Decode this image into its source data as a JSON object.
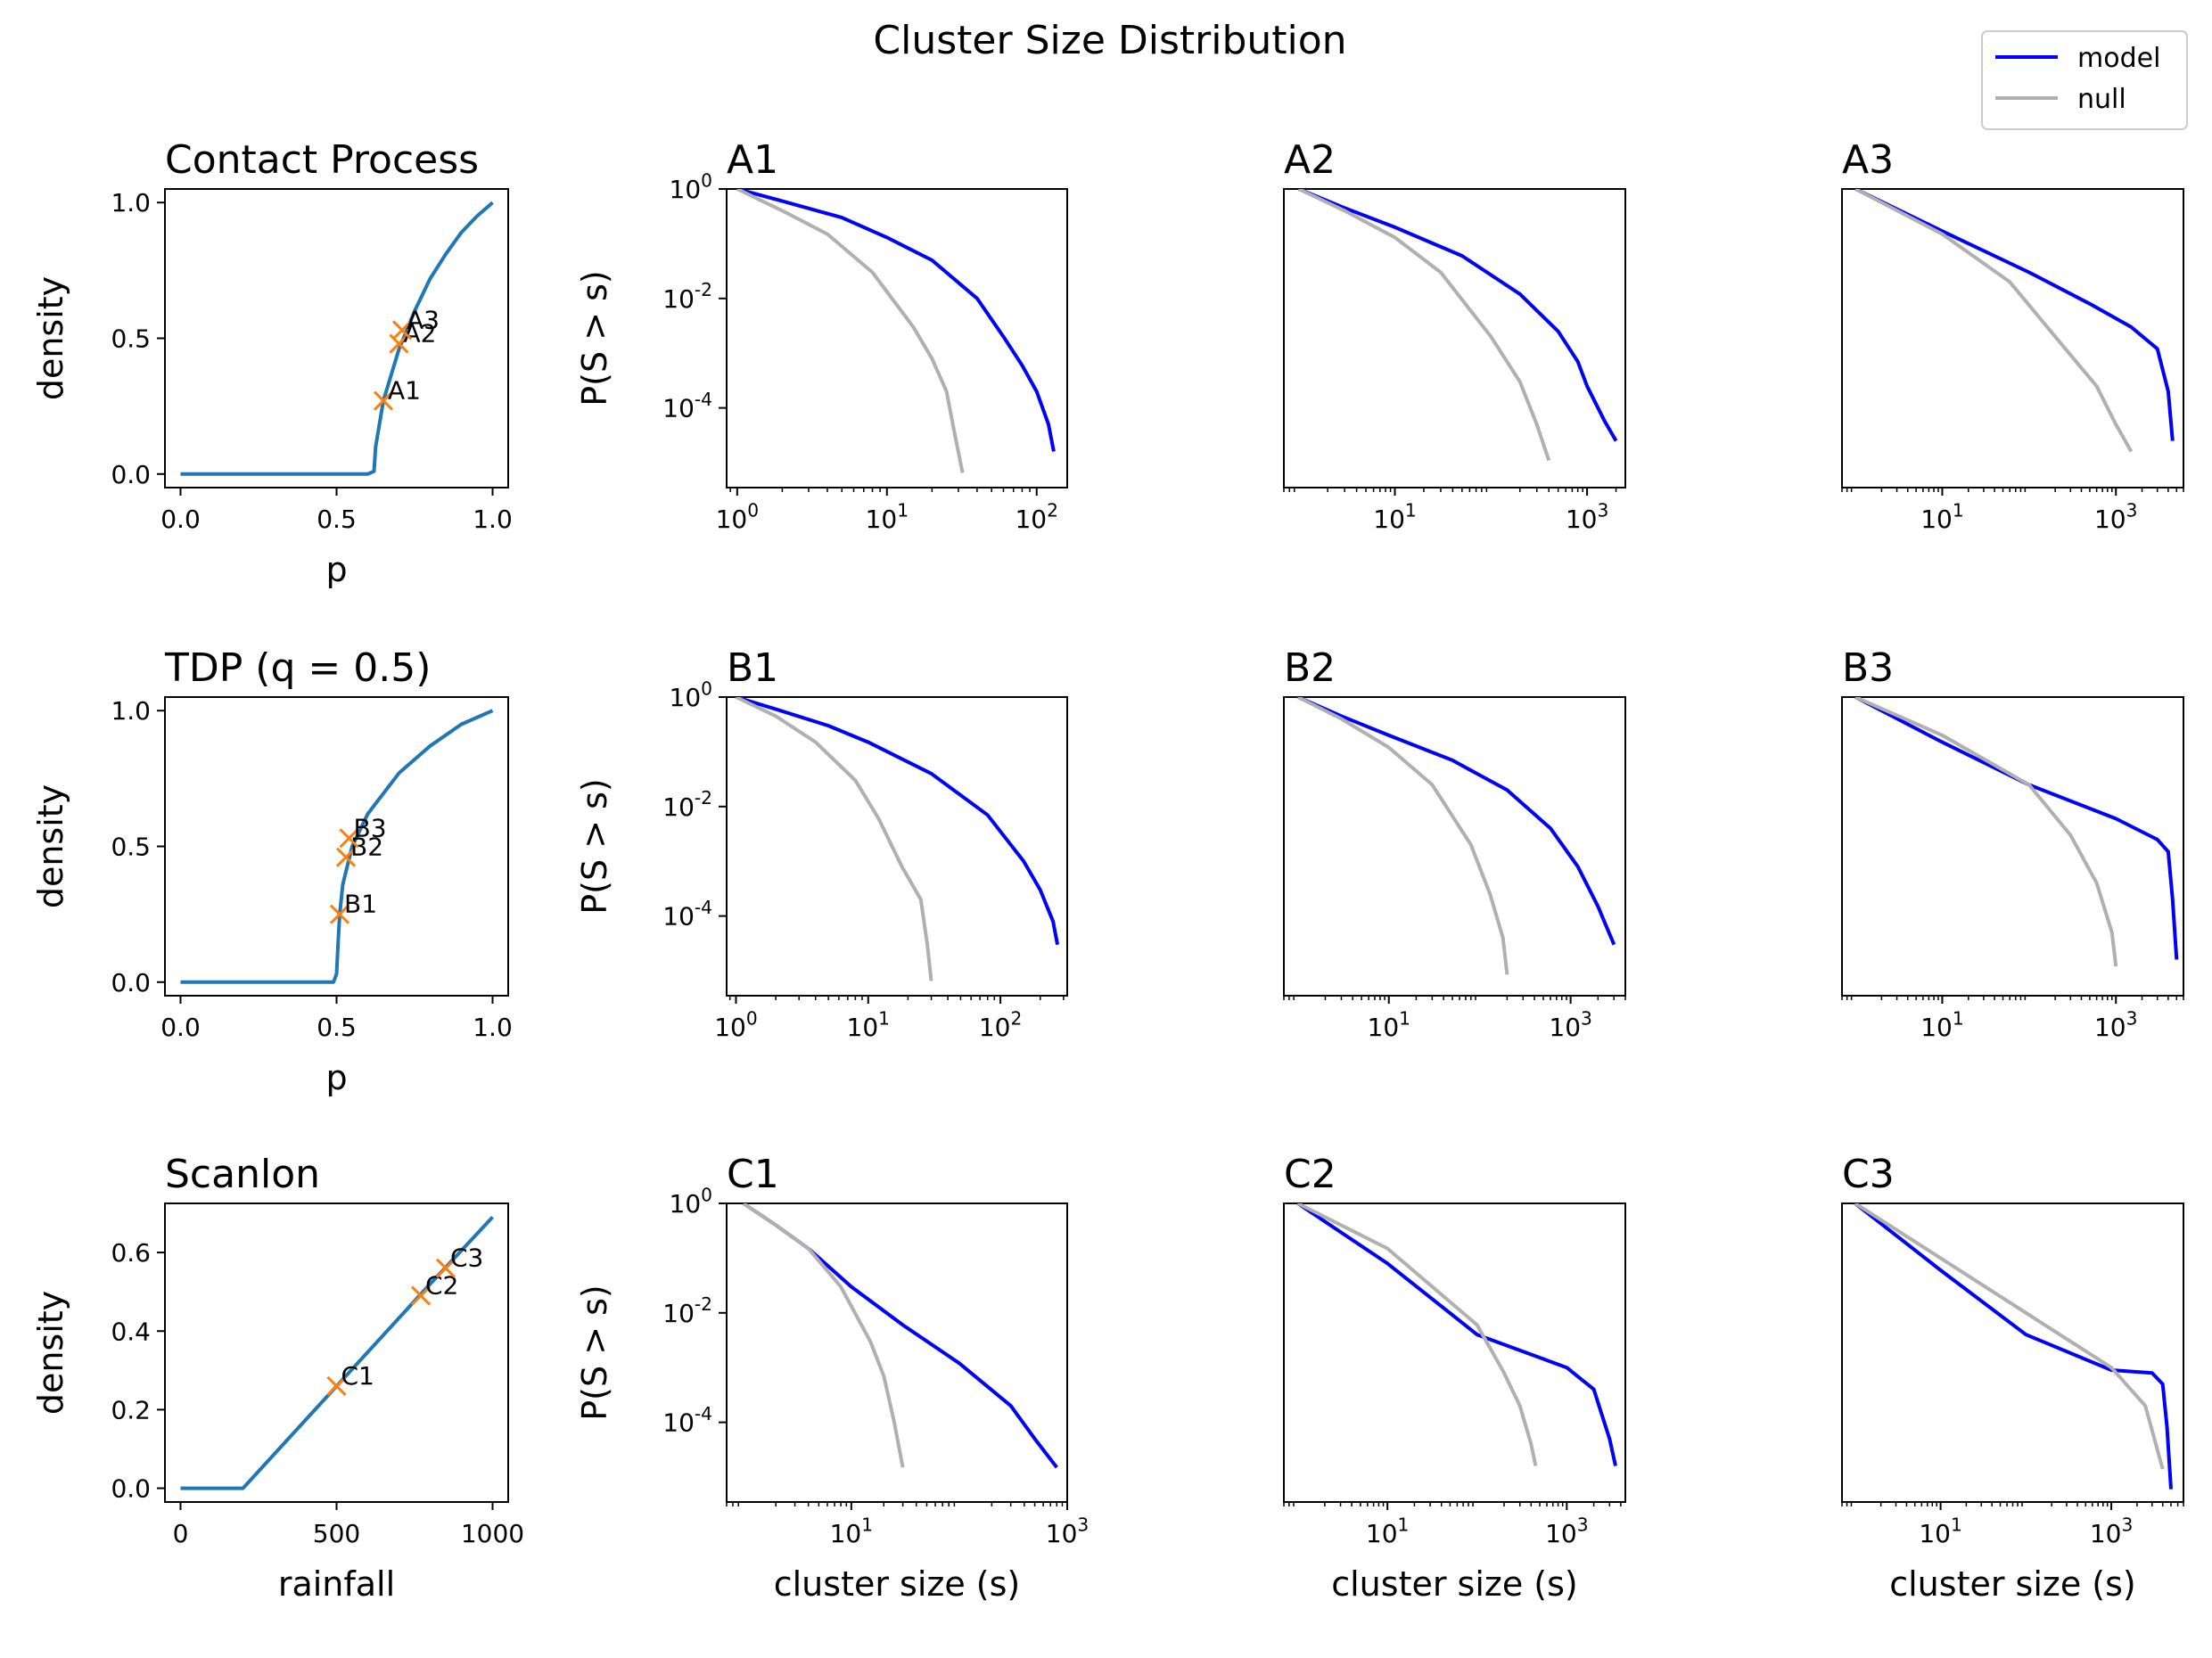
{
  "figure": {
    "title": "Cluster Size Distribution",
    "legend": {
      "placement": "upper-right",
      "entries": [
        {
          "label": "model",
          "color": "#0000ff"
        },
        {
          "label": "null",
          "color": "#b0b0b0"
        }
      ]
    }
  },
  "colors": {
    "phase_curve": "#1f77b4",
    "marker": "#ff7f0e",
    "model": "#0000ff",
    "null": "#b0b0b0"
  },
  "chart_data": [
    {
      "type": "line",
      "title": "Contact Process",
      "xlabel": "p",
      "ylabel": "density",
      "xlim": [
        -0.05,
        1.05
      ],
      "ylim": [
        -0.05,
        1.05
      ],
      "xticks": [
        0.0,
        0.5,
        1.0
      ],
      "xticklabels": [
        "0.0",
        "0.5",
        "1.0"
      ],
      "yticks": [
        0.0,
        0.5,
        1.0
      ],
      "yticklabels": [
        "0.0",
        "0.5",
        "1.0"
      ],
      "series": [
        {
          "x": [
            0,
            0.2,
            0.4,
            0.6,
            0.62,
            0.625,
            0.65,
            0.7,
            0.75,
            0.8,
            0.85,
            0.9,
            0.95,
            1.0
          ],
          "values": [
            0,
            0,
            0,
            0,
            0.01,
            0.1,
            0.27,
            0.46,
            0.6,
            0.72,
            0.81,
            0.89,
            0.95,
            1.0
          ]
        }
      ],
      "points": [
        {
          "label": "A1",
          "x": 0.65,
          "y": 0.27
        },
        {
          "label": "A2",
          "x": 0.7,
          "y": 0.48
        },
        {
          "label": "A3",
          "x": 0.71,
          "y": 0.53
        }
      ]
    },
    {
      "type": "line",
      "title": "TDP (q = 0.5)",
      "xlabel": "p",
      "ylabel": "density",
      "xlim": [
        -0.05,
        1.05
      ],
      "ylim": [
        -0.05,
        1.05
      ],
      "xticks": [
        0.0,
        0.5,
        1.0
      ],
      "xticklabels": [
        "0.0",
        "0.5",
        "1.0"
      ],
      "yticks": [
        0.0,
        0.5,
        1.0
      ],
      "yticklabels": [
        "0.0",
        "0.5",
        "1.0"
      ],
      "series": [
        {
          "x": [
            0,
            0.2,
            0.4,
            0.49,
            0.5,
            0.505,
            0.51,
            0.52,
            0.55,
            0.6,
            0.7,
            0.8,
            0.9,
            1.0
          ],
          "values": [
            0,
            0,
            0,
            0,
            0.03,
            0.15,
            0.25,
            0.36,
            0.5,
            0.62,
            0.77,
            0.87,
            0.95,
            1.0
          ]
        }
      ],
      "points": [
        {
          "label": "B1",
          "x": 0.51,
          "y": 0.25
        },
        {
          "label": "B2",
          "x": 0.53,
          "y": 0.46
        },
        {
          "label": "B3",
          "x": 0.54,
          "y": 0.53
        }
      ]
    },
    {
      "type": "line",
      "title": "Scanlon",
      "xlabel": "rainfall",
      "ylabel": "density",
      "xlim": [
        -50,
        1050
      ],
      "ylim": [
        -0.035,
        0.725
      ],
      "xticks": [
        0,
        500,
        1000
      ],
      "xticklabels": [
        "0",
        "500",
        "1000"
      ],
      "yticks": [
        0.0,
        0.2,
        0.4,
        0.6
      ],
      "yticklabels": [
        "0.0",
        "0.2",
        "0.4",
        "0.6"
      ],
      "series": [
        {
          "x": [
            0,
            200,
            500,
            800,
            1000
          ],
          "values": [
            0,
            0,
            0.26,
            0.52,
            0.69
          ]
        }
      ],
      "points": [
        {
          "label": "C1",
          "x": 500,
          "y": 0.26
        },
        {
          "label": "C2",
          "x": 770,
          "y": 0.49
        },
        {
          "label": "C3",
          "x": 850,
          "y": 0.56
        }
      ]
    },
    {
      "type": "line",
      "title": "A1",
      "xscale": "log",
      "yscale": "log",
      "xlabel": "",
      "ylabel": "P(S > s)",
      "xlim": [
        0.85,
        160
      ],
      "ylim": [
        3.5e-06,
        1
      ],
      "xticks": [
        1,
        10,
        100
      ],
      "xticklabels": [
        "10^0",
        "10^1",
        "10^2"
      ],
      "yticks": [
        1,
        0.01,
        0.0001
      ],
      "yticklabels": [
        "10^0",
        "10^-2",
        "10^-4"
      ],
      "series": [
        {
          "name": "model",
          "x": [
            1,
            2,
            5,
            10,
            20,
            40,
            60,
            80,
            100,
            120,
            130
          ],
          "values": [
            1,
            0.6,
            0.3,
            0.13,
            0.05,
            0.01,
            0.002,
            0.0006,
            0.0002,
            5e-05,
            1.6e-05
          ]
        },
        {
          "name": "null",
          "x": [
            1,
            2,
            4,
            8,
            15,
            20,
            25,
            28,
            32
          ],
          "values": [
            1,
            0.4,
            0.15,
            0.03,
            0.003,
            0.0008,
            0.0002,
            4e-05,
            6.5e-06
          ]
        }
      ]
    },
    {
      "type": "line",
      "title": "A2",
      "xscale": "log",
      "yscale": "log",
      "xlabel": "",
      "ylabel": "",
      "xlim": [
        0.7,
        2500
      ],
      "ylim": [
        3.5e-06,
        1
      ],
      "xticks": [
        10,
        1000
      ],
      "xticklabels": [
        "10^1",
        "10^3"
      ],
      "series": [
        {
          "name": "model",
          "x": [
            1,
            3,
            10,
            50,
            200,
            500,
            800,
            1000,
            1500,
            2000
          ],
          "values": [
            1,
            0.45,
            0.2,
            0.06,
            0.012,
            0.0025,
            0.0007,
            0.00025,
            6e-05,
            2.5e-05
          ]
        },
        {
          "name": "null",
          "x": [
            1,
            3,
            10,
            30,
            100,
            200,
            300,
            400
          ],
          "values": [
            1,
            0.4,
            0.13,
            0.03,
            0.002,
            0.0003,
            5e-05,
            1.1e-05
          ]
        }
      ]
    },
    {
      "type": "line",
      "title": "A3",
      "xscale": "log",
      "yscale": "log",
      "xlabel": "",
      "ylabel": "",
      "xlim": [
        0.7,
        6000
      ],
      "ylim": [
        3.5e-06,
        1
      ],
      "xticks": [
        10,
        1000
      ],
      "xticklabels": [
        "10^1",
        "10^3"
      ],
      "series": [
        {
          "name": "model",
          "x": [
            1,
            10,
            100,
            500,
            1500,
            3000,
            4000,
            4500
          ],
          "values": [
            1,
            0.17,
            0.03,
            0.008,
            0.003,
            0.0012,
            0.0002,
            2.5e-05
          ]
        },
        {
          "name": "null",
          "x": [
            1,
            10,
            60,
            200,
            600,
            1000,
            1500
          ],
          "values": [
            1,
            0.15,
            0.02,
            0.002,
            0.00025,
            5e-05,
            1.6e-05
          ]
        }
      ]
    },
    {
      "type": "line",
      "title": "B1",
      "xscale": "log",
      "yscale": "log",
      "xlabel": "",
      "ylabel": "P(S > s)",
      "xlim": [
        0.85,
        320
      ],
      "ylim": [
        3.5e-06,
        1
      ],
      "xticks": [
        1,
        10,
        100
      ],
      "xticklabels": [
        "10^0",
        "10^1",
        "10^2"
      ],
      "yticks": [
        1,
        0.01,
        0.0001
      ],
      "yticklabels": [
        "10^0",
        "10^-2",
        "10^-4"
      ],
      "series": [
        {
          "name": "model",
          "x": [
            1,
            2,
            5,
            10,
            30,
            80,
            150,
            200,
            250,
            270
          ],
          "values": [
            1,
            0.6,
            0.3,
            0.15,
            0.04,
            0.007,
            0.001,
            0.0003,
            8e-05,
            3e-05
          ]
        },
        {
          "name": "null",
          "x": [
            1,
            2,
            4,
            8,
            12,
            18,
            25,
            28,
            30
          ],
          "values": [
            1,
            0.45,
            0.15,
            0.03,
            0.006,
            0.0008,
            0.0002,
            3e-05,
            6.5e-06
          ]
        }
      ]
    },
    {
      "type": "line",
      "title": "B2",
      "xscale": "log",
      "yscale": "log",
      "xlabel": "",
      "ylabel": "",
      "xlim": [
        0.7,
        4000
      ],
      "ylim": [
        3.5e-06,
        1
      ],
      "xticks": [
        10,
        1000
      ],
      "xticklabels": [
        "10^1",
        "10^3"
      ],
      "series": [
        {
          "name": "model",
          "x": [
            1,
            3,
            10,
            50,
            200,
            600,
            1200,
            2000,
            3000
          ],
          "values": [
            1,
            0.45,
            0.2,
            0.07,
            0.02,
            0.004,
            0.0008,
            0.00015,
            3e-05
          ]
        },
        {
          "name": "null",
          "x": [
            1,
            3,
            10,
            30,
            80,
            130,
            180,
            200
          ],
          "values": [
            1,
            0.4,
            0.12,
            0.025,
            0.002,
            0.00025,
            4e-05,
            8.5e-06
          ]
        }
      ]
    },
    {
      "type": "line",
      "title": "B3",
      "xscale": "log",
      "yscale": "log",
      "xlabel": "",
      "ylabel": "",
      "xlim": [
        0.7,
        6000
      ],
      "ylim": [
        3.5e-06,
        1
      ],
      "xticks": [
        10,
        1000
      ],
      "xticklabels": [
        "10^1",
        "10^3"
      ],
      "series": [
        {
          "name": "model",
          "x": [
            1,
            10,
            100,
            1000,
            3000,
            4000,
            4500,
            5000
          ],
          "values": [
            1,
            0.15,
            0.025,
            0.006,
            0.0025,
            0.0015,
            0.0002,
            1.6e-05
          ]
        },
        {
          "name": "null",
          "x": [
            1,
            10,
            100,
            300,
            600,
            900,
            1000
          ],
          "values": [
            1,
            0.2,
            0.025,
            0.003,
            0.0004,
            5e-05,
            1.2e-05
          ]
        }
      ]
    },
    {
      "type": "line",
      "title": "C1",
      "xscale": "log",
      "yscale": "log",
      "xlabel": "cluster size (s)",
      "ylabel": "P(S > s)",
      "xlim": [
        0.7,
        1000
      ],
      "ylim": [
        3.5e-06,
        1
      ],
      "xticks": [
        10,
        1000
      ],
      "xticklabels": [
        "10^1",
        "10^3"
      ],
      "yticks": [
        1,
        0.01,
        0.0001
      ],
      "yticklabels": [
        "10^0",
        "10^-2",
        "10^-4"
      ],
      "series": [
        {
          "name": "model",
          "x": [
            1,
            2,
            4,
            10,
            30,
            100,
            300,
            500,
            800
          ],
          "values": [
            1,
            0.4,
            0.15,
            0.03,
            0.006,
            0.0012,
            0.0002,
            5e-05,
            1.5e-05
          ]
        },
        {
          "name": "null",
          "x": [
            1,
            2,
            4,
            8,
            15,
            20,
            25,
            30
          ],
          "values": [
            1,
            0.4,
            0.15,
            0.03,
            0.003,
            0.0007,
            0.0001,
            1.5e-05
          ]
        }
      ]
    },
    {
      "type": "line",
      "title": "C2",
      "xscale": "log",
      "yscale": "log",
      "xlabel": "cluster size (s)",
      "ylabel": "",
      "xlim": [
        0.7,
        4500
      ],
      "ylim": [
        3.5e-06,
        1
      ],
      "xticks": [
        10,
        1000
      ],
      "xticklabels": [
        "10^1",
        "10^3"
      ],
      "series": [
        {
          "name": "model",
          "x": [
            1,
            10,
            100,
            1000,
            2000,
            3000,
            3500
          ],
          "values": [
            1,
            0.08,
            0.004,
            0.001,
            0.0004,
            5e-05,
            1.6e-05
          ]
        },
        {
          "name": "null",
          "x": [
            1,
            10,
            100,
            200,
            300,
            400,
            450
          ],
          "values": [
            1,
            0.15,
            0.006,
            0.0008,
            0.0002,
            4e-05,
            1.6e-05
          ]
        }
      ]
    },
    {
      "type": "line",
      "title": "C3",
      "xscale": "log",
      "yscale": "log",
      "xlabel": "cluster size (s)",
      "ylabel": "",
      "xlim": [
        0.7,
        7000
      ],
      "ylim": [
        3.5e-06,
        1
      ],
      "xticks": [
        10,
        1000
      ],
      "xticklabels": [
        "10^1",
        "10^3"
      ],
      "series": [
        {
          "name": "model",
          "x": [
            1,
            10,
            100,
            1000,
            3000,
            4000,
            4500,
            5000
          ],
          "values": [
            1,
            0.06,
            0.004,
            0.0009,
            0.0008,
            0.0005,
            8e-05,
            6e-06
          ]
        },
        {
          "name": "null",
          "x": [
            1,
            10,
            100,
            1000,
            2500,
            4000
          ],
          "values": [
            1,
            0.1,
            0.01,
            0.001,
            0.0002,
            1.4e-05
          ]
        }
      ]
    }
  ]
}
